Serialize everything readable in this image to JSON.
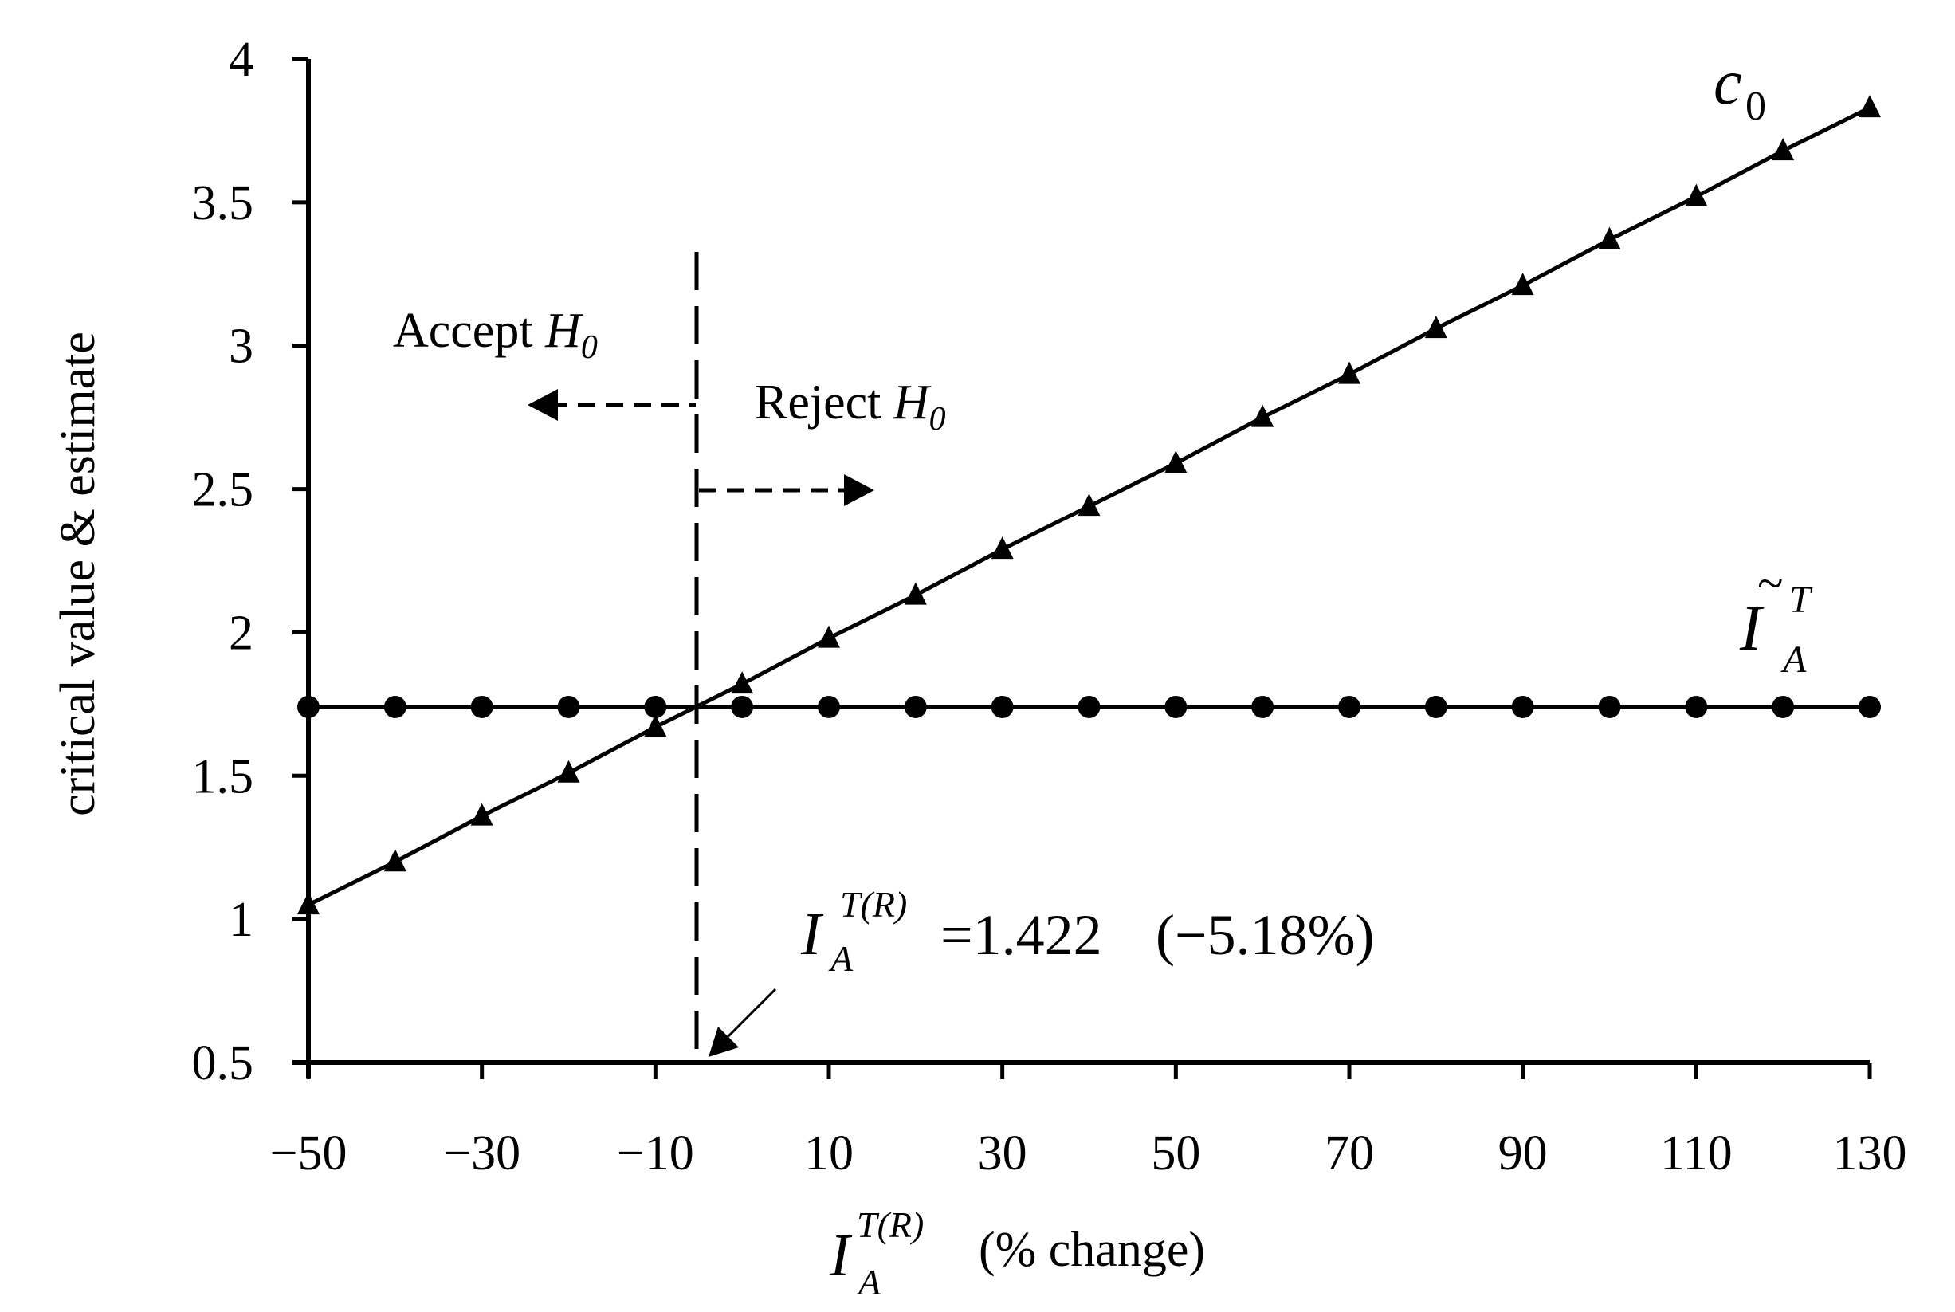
{
  "chart_data": {
    "type": "line",
    "title": "",
    "xlabel": "I_A^{T(R)} (% change)",
    "ylabel": "critical value & estimate",
    "xlim": [
      -50,
      130
    ],
    "ylim": [
      0.5,
      4
    ],
    "grid": false,
    "x": [
      -50,
      -40,
      -30,
      -20,
      -10,
      0,
      10,
      20,
      30,
      40,
      50,
      60,
      70,
      80,
      90,
      100,
      110,
      120,
      130
    ],
    "x_ticks": [
      -50,
      -30,
      -10,
      10,
      30,
      50,
      70,
      90,
      110,
      130
    ],
    "x_tick_labels": [
      "−50",
      "−30",
      "−10",
      "10",
      "30",
      "50",
      "70",
      "90",
      "110",
      "130"
    ],
    "y_ticks": [
      0.5,
      1,
      1.5,
      2,
      2.5,
      3,
      3.5,
      4
    ],
    "y_tick_labels": [
      "0.5",
      "1",
      "1.5",
      "2",
      "2.5",
      "3",
      "3.5",
      "4"
    ],
    "series": [
      {
        "name": "c0",
        "marker": "triangle",
        "values": [
          1.05,
          1.2,
          1.36,
          1.51,
          1.67,
          1.82,
          1.98,
          2.13,
          2.29,
          2.44,
          2.59,
          2.75,
          2.9,
          3.06,
          3.21,
          3.37,
          3.52,
          3.68,
          3.83
        ]
      },
      {
        "name": "I~_A^T",
        "marker": "circle",
        "values": [
          1.74,
          1.74,
          1.74,
          1.74,
          1.74,
          1.74,
          1.74,
          1.74,
          1.74,
          1.74,
          1.74,
          1.74,
          1.74,
          1.74,
          1.74,
          1.74,
          1.74,
          1.74,
          1.74
        ]
      }
    ],
    "annotations": [
      {
        "type": "vline",
        "x": -5.18,
        "style": "dashed",
        "y_top": 3.35
      },
      {
        "type": "text",
        "text": "Accept H0",
        "direction": "left"
      },
      {
        "type": "text",
        "text": "Reject H0",
        "direction": "right"
      },
      {
        "type": "text",
        "text": "I_A^{T(R)} = 1.422 (−5.18%)",
        "arrow_to_x": -5.18
      }
    ]
  },
  "labels": {
    "y_axis": "critical value & estimate",
    "x_axis_sym": "I",
    "x_axis_sup": "T(R)",
    "x_axis_sub": "A",
    "x_axis_unit": "(% change)",
    "series_c0_main": "c",
    "series_c0_sub": "0",
    "series_it_main": "I",
    "series_it_tilde": "~",
    "series_it_sup": "T",
    "series_it_sub": "A",
    "accept_word": "Accept ",
    "reject_word": "Reject ",
    "h_main": "H",
    "h_sub": "0",
    "formula_sym": "I",
    "formula_sup": "T(R)",
    "formula_sub": "A",
    "formula_value": "=1.422",
    "formula_pct": "(−5.18%)"
  }
}
